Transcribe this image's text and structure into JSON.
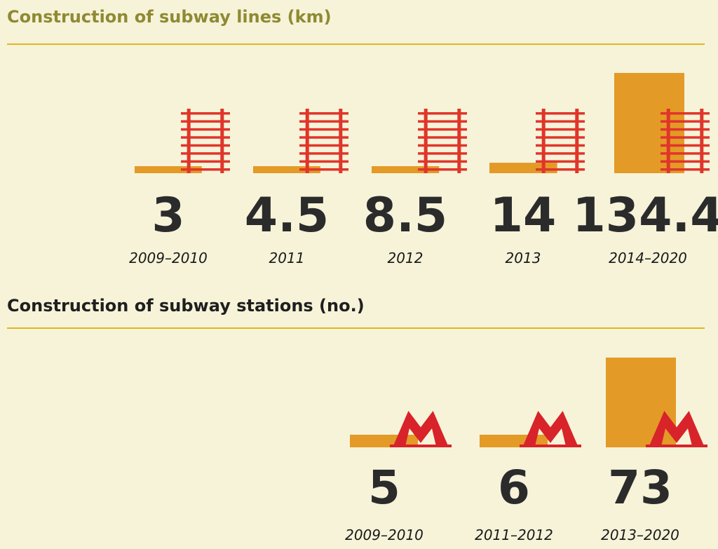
{
  "chart_data": [
    {
      "type": "bar",
      "title": "Construction of subway lines (km)",
      "categories": [
        "2009–2010",
        "2011",
        "2012",
        "2013",
        "2014–2020"
      ],
      "values": [
        3,
        4.5,
        8.5,
        14,
        134.4
      ],
      "value_labels": [
        "3",
        "4.5",
        "8.5",
        "14",
        "134.4"
      ],
      "icon": "rail-track-icon",
      "colors": {
        "bar": "#e39a26",
        "icon": "#e0352a",
        "rule": "#e1b623",
        "title": "#8f8a33"
      }
    },
    {
      "type": "bar",
      "title": "Construction of subway stations (no.)",
      "categories": [
        "2009–2010",
        "2011–2012",
        "2013–2020"
      ],
      "values": [
        5,
        6,
        73
      ],
      "value_labels": [
        "5",
        "6",
        "73"
      ],
      "icon": "metro-m-logo-icon",
      "colors": {
        "bar": "#e39a26",
        "icon": "#d8232a",
        "rule": "#e1b623",
        "title": "#1f1f1f"
      }
    }
  ]
}
